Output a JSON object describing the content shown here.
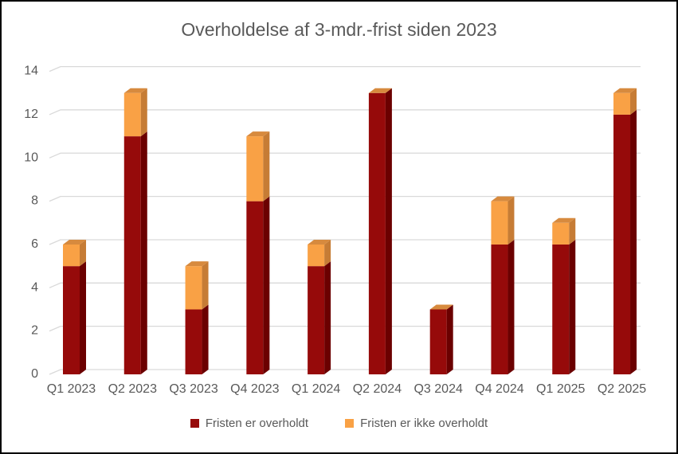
{
  "chart_data": {
    "type": "bar",
    "subtype": "stacked-3d-column",
    "title": "Overholdelse af 3-mdr.-frist siden 2023",
    "categories": [
      "Q1 2023",
      "Q2 2023",
      "Q3 2023",
      "Q4 2023",
      "Q1 2024",
      "Q2 2024",
      "Q3 2024",
      "Q4 2024",
      "Q1 2025",
      "Q2 2025"
    ],
    "series": [
      {
        "name": "Fristen er overholdt",
        "color": "#960A0A",
        "values": [
          5,
          11,
          3,
          8,
          5,
          13,
          3,
          6,
          6,
          12
        ]
      },
      {
        "name": "Fristen er ikke overholdt",
        "color": "#F9A145",
        "values": [
          1,
          2,
          2,
          3,
          1,
          0,
          0,
          2,
          1,
          1
        ]
      }
    ],
    "totals": [
      6,
      13,
      5,
      11,
      6,
      13,
      3,
      8,
      7,
      13
    ],
    "ylim": [
      0,
      14
    ],
    "yticks": [
      0,
      2,
      4,
      6,
      8,
      10,
      12,
      14
    ],
    "grid": true,
    "legend_position": "bottom",
    "xlabel": "",
    "ylabel": ""
  },
  "colors": {
    "grid": "#D9D9D9",
    "text": "#595959",
    "frame_border": "#000000",
    "series1_front": "#960A0A",
    "series1_side": "#6B0000",
    "series2_front": "#F9A145",
    "series2_side": "#C67C35",
    "series2_top": "#D78A3E"
  }
}
